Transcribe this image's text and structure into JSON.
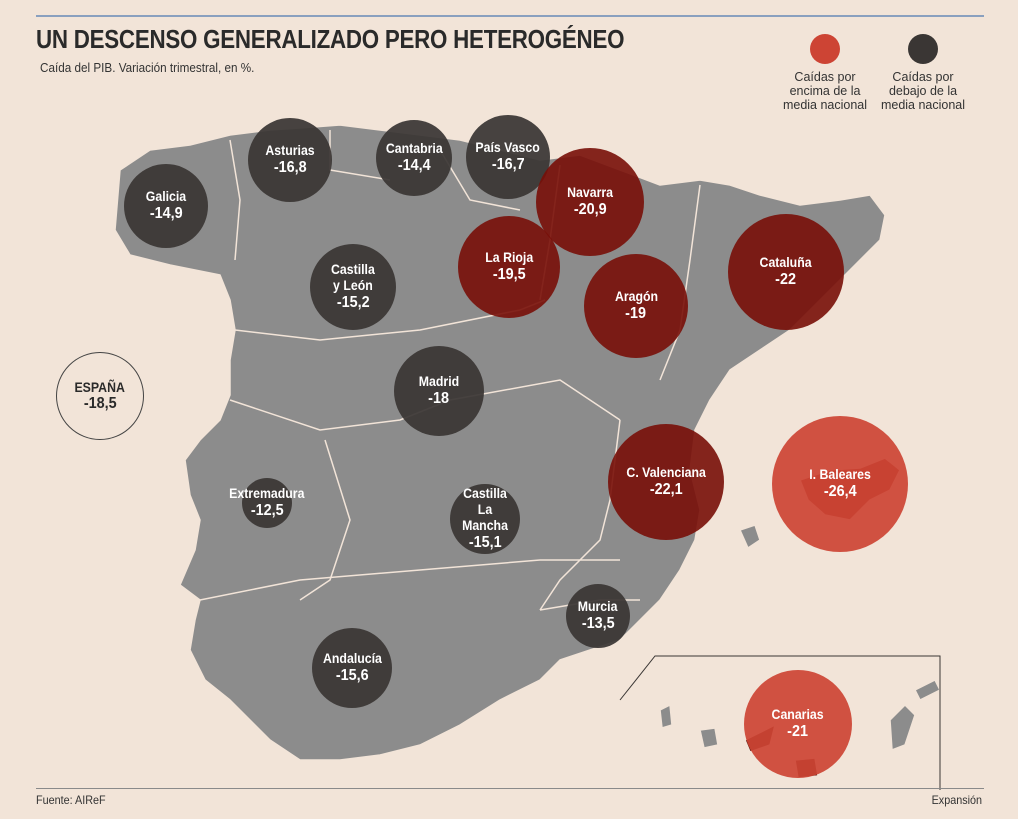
{
  "title": "UN DESCENSO GENERALIZADO PERO HETEROGÉNEO",
  "subtitle": "Caída del PIB. Variación trimestral, en %.",
  "legend": {
    "above": {
      "label": "Caídas por\nencima de la\nmedia nacional",
      "color": "#cd4434"
    },
    "below": {
      "label": "Caídas por\ndebajo de la\nmedia nacional",
      "color": "#3a3634"
    }
  },
  "national": {
    "label": "ESPAÑA",
    "value": "-18,5"
  },
  "regions": [
    {
      "id": "galicia",
      "name": "Galicia",
      "value": "-14,9",
      "tone": "dark"
    },
    {
      "id": "asturias",
      "name": "Asturias",
      "value": "-16,8",
      "tone": "dark"
    },
    {
      "id": "cantabria",
      "name": "Cantabria",
      "value": "-14,4",
      "tone": "dark"
    },
    {
      "id": "pais-vasco",
      "name": "País Vasco",
      "value": "-16,7",
      "tone": "dark"
    },
    {
      "id": "navarra",
      "name": "Navarra",
      "value": "-20,9",
      "tone": "red-dark"
    },
    {
      "id": "la-rioja",
      "name": "La Rioja",
      "value": "-19,5",
      "tone": "red-dark"
    },
    {
      "id": "castilla-leon",
      "name": "Castilla\ny León",
      "value": "-15,2",
      "tone": "dark"
    },
    {
      "id": "aragon",
      "name": "Aragón",
      "value": "-19",
      "tone": "red-dark"
    },
    {
      "id": "cataluna",
      "name": "Cataluña",
      "value": "-22",
      "tone": "red-dark"
    },
    {
      "id": "madrid",
      "name": "Madrid",
      "value": "-18",
      "tone": "dark"
    },
    {
      "id": "c-valenciana",
      "name": "C. Valenciana",
      "value": "-22,1",
      "tone": "red-dark"
    },
    {
      "id": "baleares",
      "name": "I. Baleares",
      "value": "-26,4",
      "tone": "red"
    },
    {
      "id": "extremadura",
      "name": "Extremadura",
      "value": "-12,5",
      "tone": "dark"
    },
    {
      "id": "castilla-la-mancha",
      "name": "Castilla\nLa Mancha",
      "value": "-15,1",
      "tone": "dark"
    },
    {
      "id": "murcia",
      "name": "Murcia",
      "value": "-13,5",
      "tone": "dark"
    },
    {
      "id": "andalucia",
      "name": "Andalucía",
      "value": "-15,6",
      "tone": "dark"
    },
    {
      "id": "canarias",
      "name": "Canarias",
      "value": "-21",
      "tone": "red"
    }
  ],
  "source": "Fuente: AIReF",
  "credit": "Expansión"
}
